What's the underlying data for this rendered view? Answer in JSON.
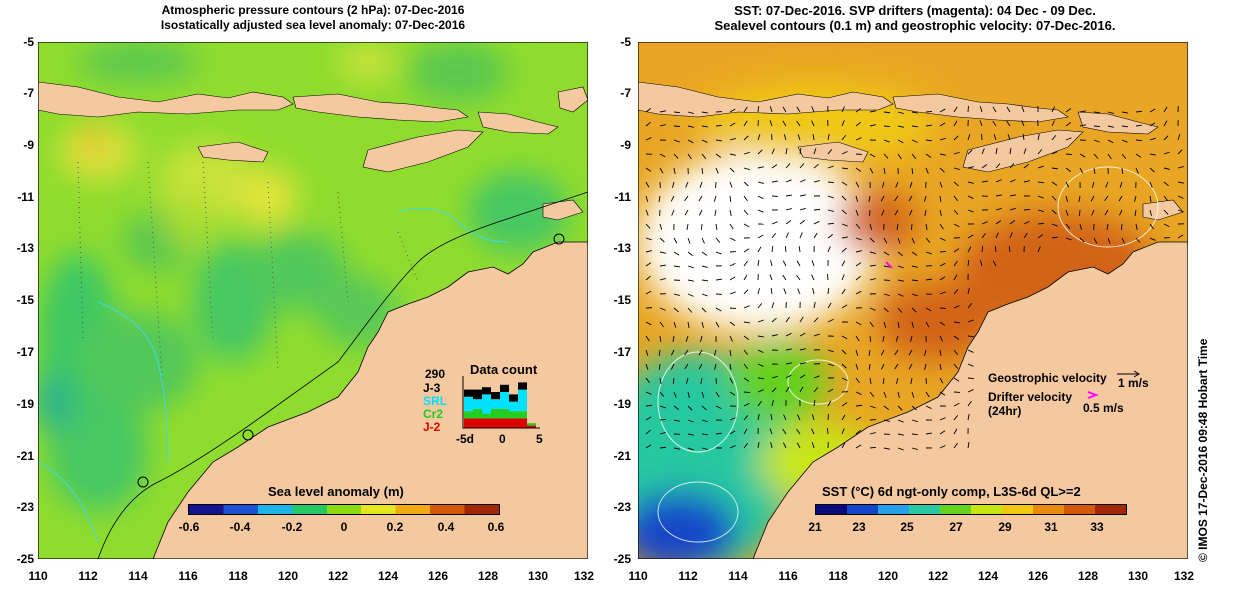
{
  "left_panel": {
    "title_line1": "Atmospheric pressure contours (2 hPa): 07-Dec-2016",
    "title_line2": "Isostatically adjusted sea level anomaly: 07-Dec-2016",
    "colorbar": {
      "title": "Sea level anomaly (m)",
      "ticks": [
        "-0.6",
        "-0.4",
        "-0.2",
        "0",
        "0.2",
        "0.4",
        "0.6"
      ],
      "colors": [
        "#14148c",
        "#1e50d2",
        "#1eb4e6",
        "#28c864",
        "#8cdc14",
        "#e6e61e",
        "#f0aa14",
        "#d25a0a",
        "#a02808"
      ]
    },
    "data_count": {
      "title": "Data count",
      "total": "290",
      "missions": [
        {
          "label": "J-3",
          "color": "#000000"
        },
        {
          "label": "SRL",
          "color": "#00e0ff"
        },
        {
          "label": "Cr2",
          "color": "#22cc22"
        },
        {
          "label": "J-2",
          "color": "#dd0000"
        }
      ],
      "xticks": [
        "-5d",
        "0",
        "5"
      ],
      "bars": [
        {
          "j2": 4,
          "cr2": 3,
          "srl": 6,
          "j3": 3
        },
        {
          "j2": 4,
          "cr2": 4,
          "srl": 4,
          "j3": 4
        },
        {
          "j2": 4,
          "cr2": 2,
          "srl": 8,
          "j3": 3
        },
        {
          "j2": 4,
          "cr2": 4,
          "srl": 4,
          "j3": 3
        },
        {
          "j2": 4,
          "cr2": 4,
          "srl": 7,
          "j3": 3
        },
        {
          "j2": 4,
          "cr2": 3,
          "srl": 4,
          "j3": 3
        },
        {
          "j2": 4,
          "cr2": 3,
          "srl": 9,
          "j3": 3
        },
        {
          "j2": 1,
          "cr2": 1,
          "srl": 0,
          "j3": 0
        }
      ]
    }
  },
  "right_panel": {
    "title_line1": "SST: 07-Dec-2016. SVP drifters (magenta): 04 Dec - 09 Dec.",
    "title_line2": "Sealevel contours (0.1 m) and geostrophic velocity: 07-Dec-2016.",
    "colorbar": {
      "title": "SST (°C) 6d ngt-only comp, L3S-6d QL>=2",
      "ticks": [
        "21",
        "23",
        "25",
        "27",
        "29",
        "31",
        "33"
      ],
      "colors": [
        "#0a0a78",
        "#1446c8",
        "#28a0e6",
        "#28c8a0",
        "#64d21e",
        "#c8e614",
        "#f0c814",
        "#e68c0a",
        "#d25a0a",
        "#a02808"
      ]
    },
    "legend": {
      "geo_label": "Geostrophic velocity",
      "geo_scale": "1 m/s",
      "drifter_label": "Drifter velocity",
      "drifter_sub": "(24hr)",
      "drifter_scale": "0.5 m/s",
      "drifter_color": "#ff00ff"
    }
  },
  "axes": {
    "x_ticks": [
      "110",
      "112",
      "114",
      "116",
      "118",
      "120",
      "122",
      "124",
      "126",
      "128",
      "130",
      "132"
    ],
    "y_ticks": [
      "-5",
      "-7",
      "-9",
      "-11",
      "-13",
      "-15",
      "-17",
      "-19",
      "-21",
      "-23",
      "-25"
    ]
  },
  "credit": "© IMOS 17-Dec-2016 09:48 Hobart Time",
  "colors": {
    "land": "#f5c9a0",
    "sea_green": "#8edc3a",
    "sea_orange": "#e8a020"
  }
}
